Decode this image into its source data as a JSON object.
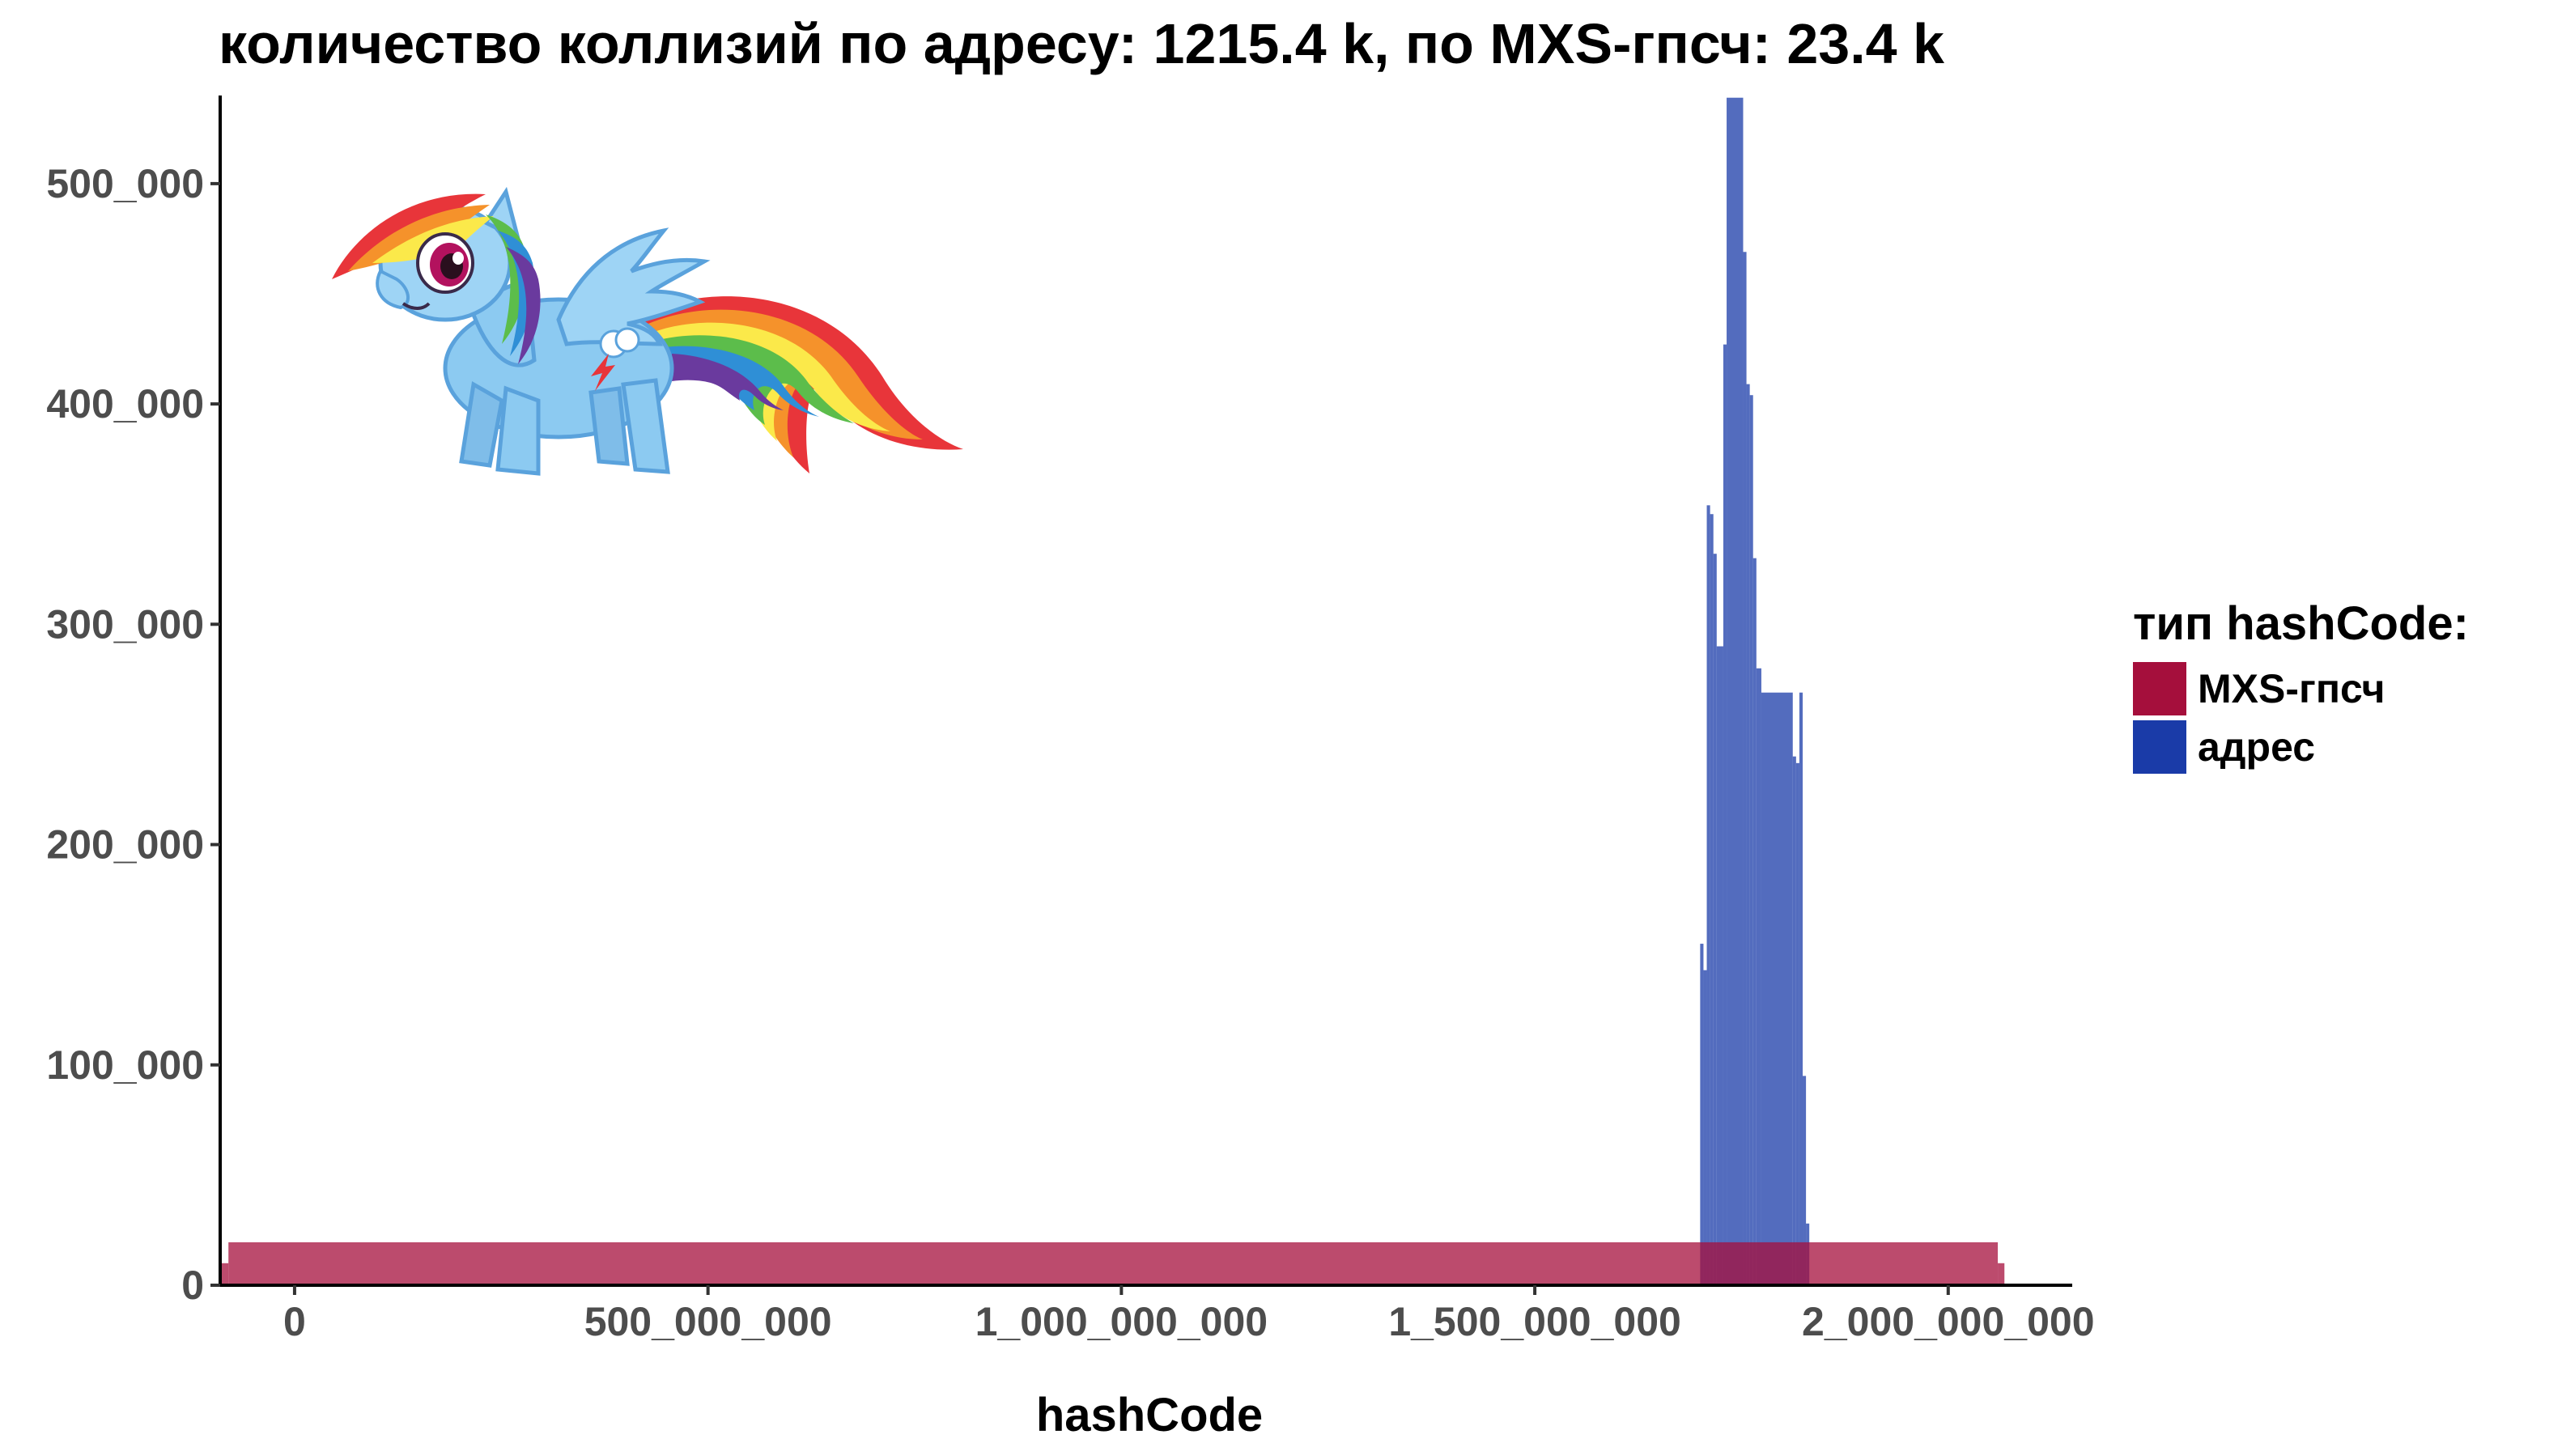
{
  "chart_data": {
    "type": "histogram",
    "title": "количество коллизий по адресу: 1215.4 k, по MXS-гпсч: 23.4 k",
    "xlabel": "hashCode",
    "ylabel": "",
    "xlim": [
      -90000000,
      2150000000
    ],
    "ylim": [
      0,
      540000
    ],
    "x_ticks": [
      {
        "value": 0,
        "label": "0"
      },
      {
        "value": 500000000,
        "label": "500_000_000"
      },
      {
        "value": 1000000000,
        "label": "1_000_000_000"
      },
      {
        "value": 1500000000,
        "label": "1_500_000_000"
      },
      {
        "value": 2000000000,
        "label": "2_000_000_000"
      }
    ],
    "y_ticks": [
      {
        "value": 0,
        "label": "0"
      },
      {
        "value": 100000,
        "label": "100_000"
      },
      {
        "value": 200000,
        "label": "200_000"
      },
      {
        "value": 300000,
        "label": "300_000"
      },
      {
        "value": 400000,
        "label": "400_000"
      },
      {
        "value": 500000,
        "label": "500_000"
      }
    ],
    "grid": false,
    "legend": {
      "title": "тип hashCode:",
      "position": "right",
      "items": [
        {
          "name": "MXS-гпсч",
          "color": "#a50f3c"
        },
        {
          "name": "адрес",
          "color": "#1a3ba8"
        }
      ]
    },
    "series": [
      {
        "name": "MXS-гпсч",
        "color": "#a50f3c",
        "fill_opacity": 0.75,
        "bins": [
          {
            "x0": -90000000,
            "x1": -80000000,
            "count": 10000
          },
          {
            "x0": -80000000,
            "x1": 2060000000,
            "count": 19500
          },
          {
            "x0": 2060000000,
            "x1": 2068000000,
            "count": 10000
          }
        ]
      },
      {
        "name": "адрес",
        "color": "#1a3ba8",
        "fill_opacity": 0.75,
        "bins": [
          {
            "x0": 1700000000,
            "x1": 1704000000,
            "count": 155000
          },
          {
            "x0": 1704000000,
            "x1": 1708000000,
            "count": 143000
          },
          {
            "x0": 1708000000,
            "x1": 1712000000,
            "count": 354000
          },
          {
            "x0": 1712000000,
            "x1": 1716000000,
            "count": 350000
          },
          {
            "x0": 1716000000,
            "x1": 1720000000,
            "count": 332000
          },
          {
            "x0": 1720000000,
            "x1": 1728000000,
            "count": 290000
          },
          {
            "x0": 1728000000,
            "x1": 1732000000,
            "count": 427000
          },
          {
            "x0": 1732000000,
            "x1": 1752000000,
            "count": 539000
          },
          {
            "x0": 1752000000,
            "x1": 1756000000,
            "count": 469000
          },
          {
            "x0": 1756000000,
            "x1": 1760000000,
            "count": 409000
          },
          {
            "x0": 1760000000,
            "x1": 1764000000,
            "count": 404000
          },
          {
            "x0": 1764000000,
            "x1": 1768000000,
            "count": 330000
          },
          {
            "x0": 1768000000,
            "x1": 1774000000,
            "count": 280000
          },
          {
            "x0": 1774000000,
            "x1": 1812000000,
            "count": 269000
          },
          {
            "x0": 1812000000,
            "x1": 1816000000,
            "count": 240000
          },
          {
            "x0": 1816000000,
            "x1": 1820000000,
            "count": 237000
          },
          {
            "x0": 1820000000,
            "x1": 1824000000,
            "count": 269000
          },
          {
            "x0": 1824000000,
            "x1": 1828000000,
            "count": 95000
          },
          {
            "x0": 1828000000,
            "x1": 1832000000,
            "count": 28000
          }
        ]
      }
    ]
  },
  "image": {
    "icon": "rainbow-pony-illustration"
  }
}
